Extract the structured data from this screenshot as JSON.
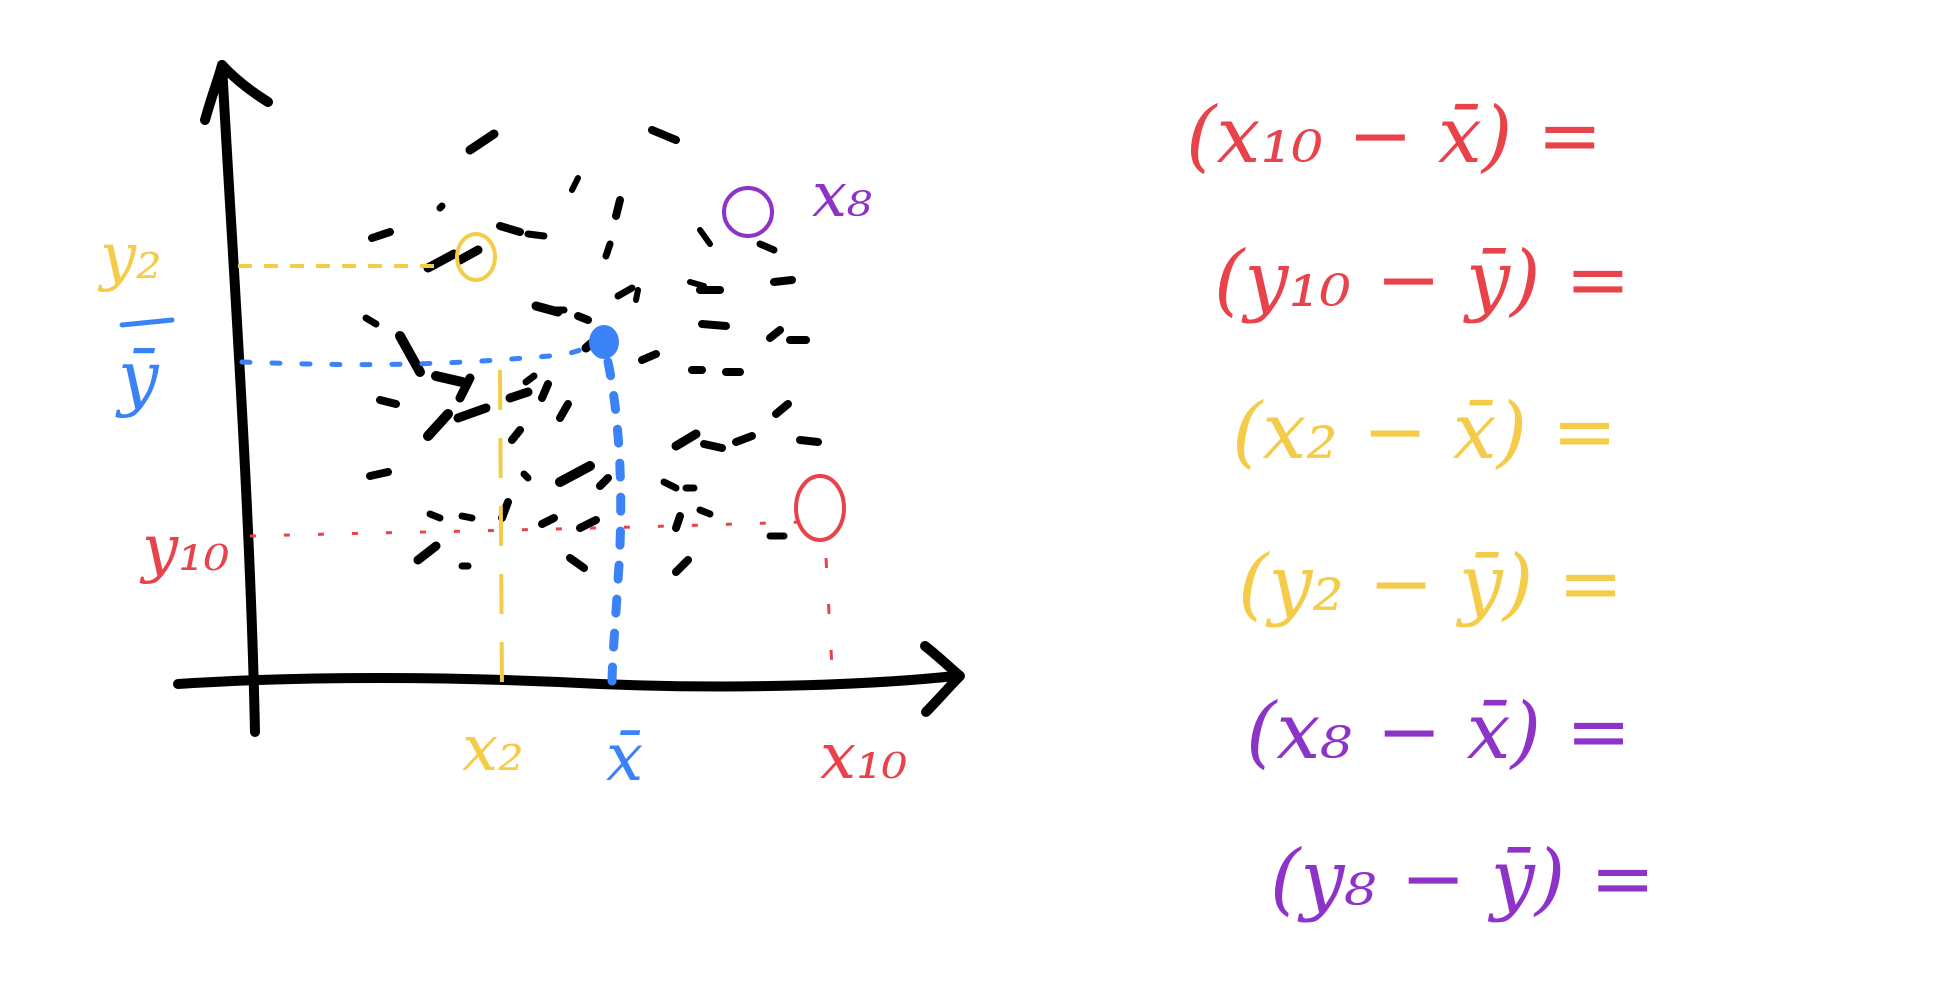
{
  "colors": {
    "ink": "#000000",
    "red": "#e8434a",
    "yellow": "#f5cc4a",
    "blue": "#3b82f6",
    "purple": "#8e33c7"
  },
  "axis_labels": {
    "y2": "y₂",
    "ybar": "ȳ",
    "y10": "y₁₀",
    "x2": "x₂",
    "xbar": "x̄",
    "x10": "x₁₀",
    "x8": "x₈"
  },
  "equations": [
    {
      "text": "(x₁₀ − x̄) =",
      "color": "red"
    },
    {
      "text": "(y₁₀ − ȳ) =",
      "color": "red"
    },
    {
      "text": "(x₂ − x̄) =",
      "color": "yellow"
    },
    {
      "text": "(y₂ − ȳ) =",
      "color": "yellow"
    },
    {
      "text": "(x₈ − x̄) =",
      "color": "purple"
    },
    {
      "text": "(y₈ − ȳ) =",
      "color": "purple"
    }
  ]
}
